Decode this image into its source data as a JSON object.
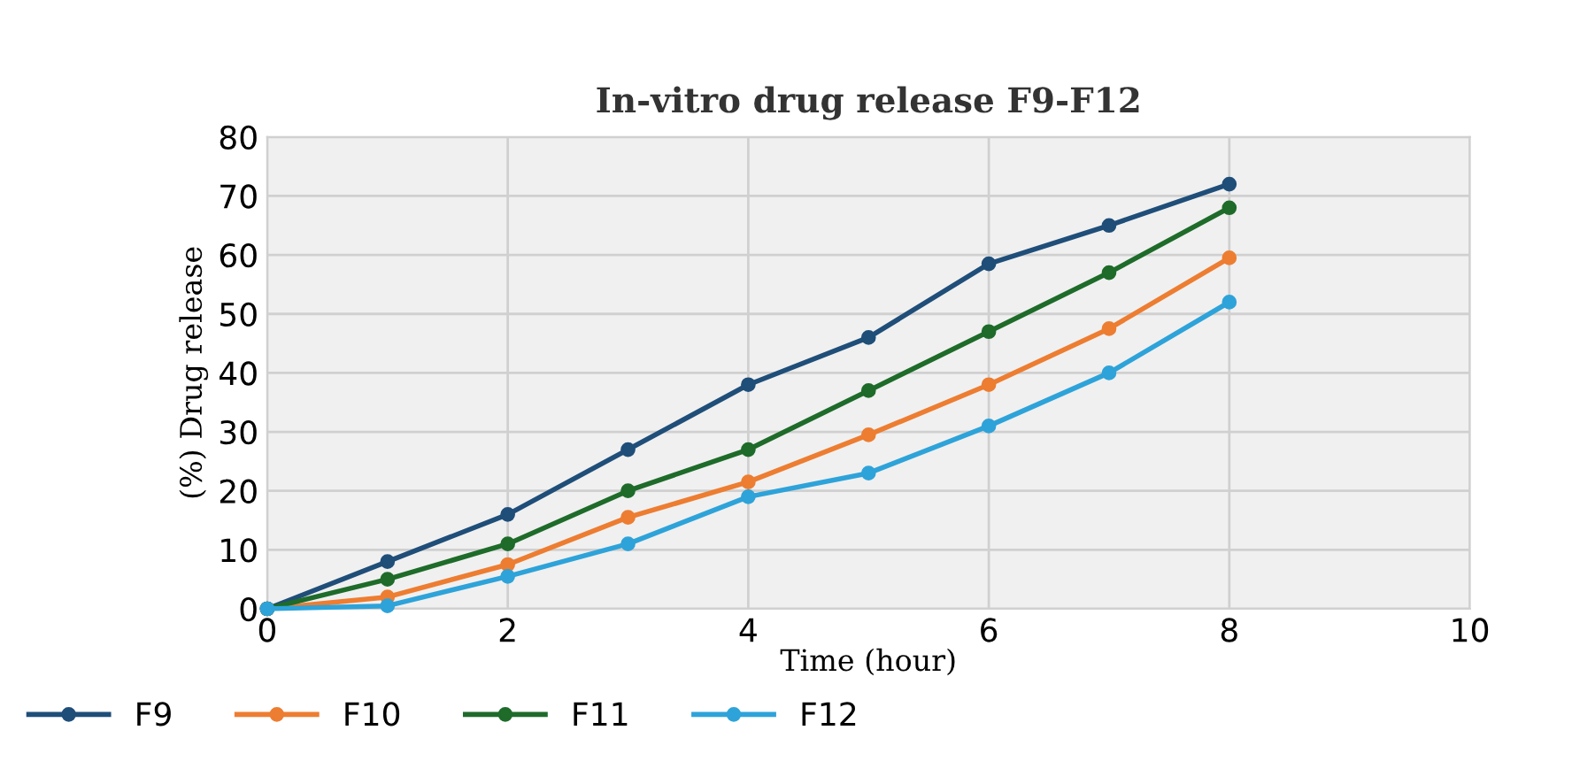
{
  "chart_data": {
    "type": "line",
    "title": "In-vitro drug release F9-F12",
    "xlabel": "Time (hour)",
    "ylabel": "(%) Drug release",
    "x": [
      0,
      1,
      2,
      3,
      4,
      5,
      6,
      7,
      8
    ],
    "series": [
      {
        "name": "F9",
        "color": "#1f4e79",
        "values": [
          0,
          8,
          16,
          27,
          38,
          46,
          58.5,
          65,
          72
        ]
      },
      {
        "name": "F10",
        "color": "#ed7d31",
        "values": [
          0,
          2,
          7.5,
          15.5,
          21.5,
          29.5,
          38,
          47.5,
          59.5
        ]
      },
      {
        "name": "F11",
        "color": "#1e6b2a",
        "values": [
          0,
          5,
          11,
          20,
          27,
          37,
          47,
          57,
          68
        ]
      },
      {
        "name": "F12",
        "color": "#2ea3d9",
        "values": [
          0,
          0.5,
          5.5,
          11,
          19,
          23,
          31,
          40,
          52
        ]
      }
    ],
    "xlim": [
      0,
      10
    ],
    "xticks": [
      0,
      2,
      4,
      6,
      8,
      10
    ],
    "ylim": [
      0,
      80
    ],
    "yticks": [
      0,
      10,
      20,
      30,
      40,
      50,
      60,
      70,
      80
    ],
    "grid": true,
    "legend": "bottom left",
    "marker": "circle",
    "line_style": "solid"
  }
}
